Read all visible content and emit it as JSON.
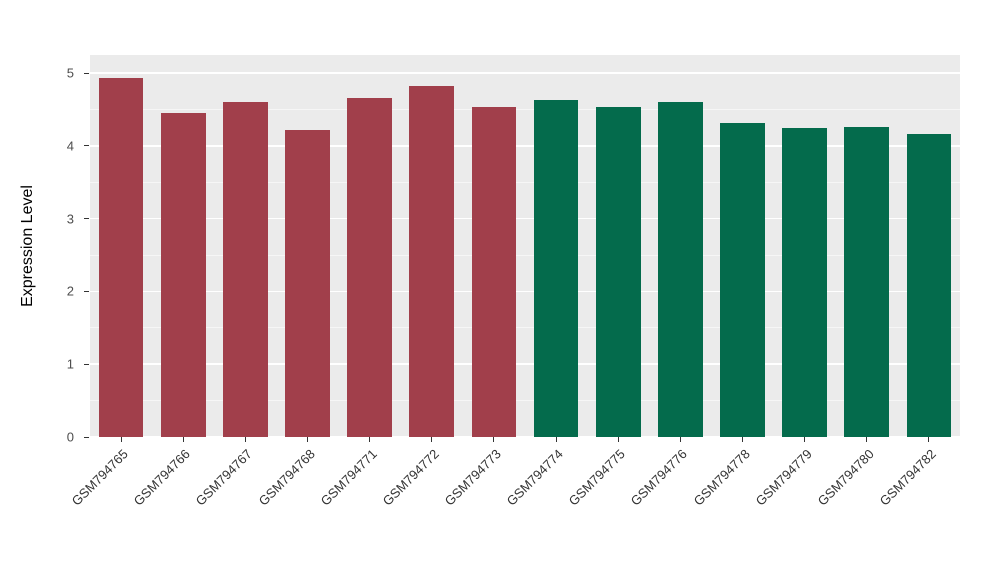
{
  "chart_data": {
    "type": "bar",
    "title": "",
    "xlabel": "",
    "ylabel": "Expression Level",
    "categories": [
      "GSM794765",
      "GSM794766",
      "GSM794767",
      "GSM794768",
      "GSM794771",
      "GSM794772",
      "GSM794773",
      "GSM794774",
      "GSM794775",
      "GSM794776",
      "GSM794778",
      "GSM794779",
      "GSM794780",
      "GSM794782"
    ],
    "series": [
      {
        "name": "Expression Level",
        "values": [
          4.93,
          4.45,
          4.6,
          4.22,
          4.66,
          4.82,
          4.53,
          4.63,
          4.53,
          4.6,
          4.31,
          4.25,
          4.26,
          4.17
        ]
      }
    ],
    "bar_colors": [
      "#A13F4B",
      "#A13F4B",
      "#A13F4B",
      "#A13F4B",
      "#A13F4B",
      "#A13F4B",
      "#A13F4B",
      "#046B4C",
      "#046B4C",
      "#046B4C",
      "#046B4C",
      "#046B4C",
      "#046B4C",
      "#046B4C"
    ],
    "ylim": [
      0,
      5.25
    ],
    "yticks": [
      0,
      1,
      2,
      3,
      4,
      5
    ],
    "minor_yticks": [
      0.5,
      1.5,
      2.5,
      3.5,
      4.5
    ],
    "grid": true,
    "legend_position": "none",
    "x_tick_angle": 45,
    "panel_background": "#EBEBEB",
    "gridline_color": "#FFFFFF",
    "bar_width_fraction": 0.72
  }
}
